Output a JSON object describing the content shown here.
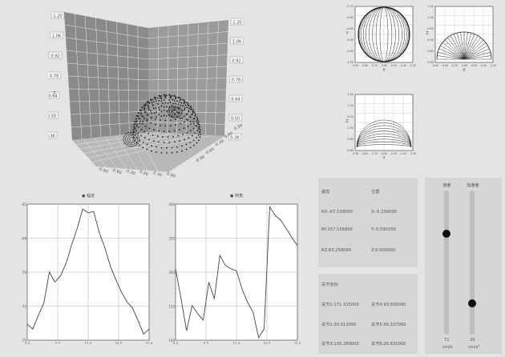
{
  "view3d": {
    "z_ticks_left": [
      "1.20",
      "1.06",
      "0.92",
      "0.78",
      "0.64",
      "0.50",
      "0.36"
    ],
    "z_ticks_right": [
      "1.20",
      "1.06",
      "0.92",
      "0.78",
      "0.64",
      "0.50",
      "0.36"
    ],
    "z_axis_label": "Z",
    "x_ticks": [
      "-0.90",
      "-0.60",
      "-0.30",
      "0.00",
      "0.30",
      "0.60"
    ],
    "y_ticks": [
      "-0.90",
      "-0.60",
      "-0.30",
      "0.00",
      "0.30"
    ]
  },
  "small_charts": {
    "top_left": {
      "y_ticks": [
        "-0.75",
        "-0.80",
        "-0.85",
        "-0.90",
        "-0.95",
        "-1.00"
      ],
      "x_ticks": [
        "-0.90",
        "-0.80",
        "-0.70",
        "-0.60",
        "-0.50",
        "-0.40",
        "-0.30"
      ],
      "ylabel": "Y",
      "xlabel": "X"
    },
    "top_right": {
      "y_ticks": [
        "1.05",
        "1.00",
        "0.95",
        "0.90",
        "0.85",
        "0.80"
      ],
      "x_ticks": [
        "-0.90",
        "-0.80",
        "-0.70",
        "-0.60",
        "-0.50",
        "-0.40",
        "-0.30"
      ],
      "ylabel": "Z",
      "xlabel": "X"
    },
    "bottom": {
      "y_ticks": [
        "1.05",
        "1.00",
        "0.95",
        "0.90",
        "0.85",
        "0.80"
      ],
      "x_ticks": [
        "-0.90",
        "-0.80",
        "-0.70",
        "-0.60",
        "-0.50",
        "-0.40",
        "-0.30"
      ],
      "ylabel": "Z",
      "xlabel": "Y"
    }
  },
  "chart_data": [
    {
      "type": "line",
      "title": "",
      "legend": [
        "● 幅度"
      ],
      "x_ticks": [
        "0.0",
        "5.5",
        "11.0",
        "16.5",
        "22.0"
      ],
      "y_ticks": [
        "-65",
        "-68",
        "-70",
        "-72",
        "-75"
      ],
      "ylim": [
        -75.5,
        -64.5
      ],
      "x": [
        0,
        1,
        2,
        3,
        4,
        5,
        6,
        7,
        8,
        9,
        10,
        11,
        12,
        13,
        14,
        15,
        16,
        17,
        18,
        19,
        20,
        21,
        22
      ],
      "values": [
        -74.2,
        -74.6,
        -73.5,
        -72.5,
        -70.0,
        -70.8,
        -70.3,
        -69.3,
        -67.8,
        -66.5,
        -64.9,
        -65.2,
        -65.1,
        -66.8,
        -68.0,
        -69.5,
        -70.6,
        -71.6,
        -72.4,
        -72.9,
        -73.9,
        -75.0,
        -74.6
      ]
    },
    {
      "type": "line",
      "title": "",
      "legend": [
        "● 侧角"
      ],
      "x_ticks": [
        "0.0",
        "5.5",
        "11.0",
        "16.5",
        "22.0"
      ],
      "y_ticks": [
        "300",
        "250",
        "200",
        "150",
        "100"
      ],
      "ylim": [
        98,
        302
      ],
      "x": [
        0,
        1,
        2,
        3,
        4,
        5,
        6,
        7,
        8,
        9,
        10,
        11,
        12,
        13,
        14,
        15,
        16,
        17,
        18,
        19,
        20,
        21,
        22
      ],
      "values": [
        205,
        160,
        112,
        150,
        138,
        128,
        185,
        160,
        225,
        210,
        205,
        202,
        175,
        155,
        140,
        102,
        115,
        298,
        285,
        278,
        265,
        252,
        240
      ]
    }
  ],
  "status": {
    "title_left": "姿态",
    "title_right": "位置",
    "rows": [
      {
        "left": "RX:-67.100000",
        "right": "X:-0.236000"
      },
      {
        "left": "RY:157.156800",
        "right": "Y:-0.590200"
      },
      {
        "left": "RZ:83.258000",
        "right": "Z:0.600000"
      }
    ]
  },
  "joints": {
    "title": "关节坐标",
    "rows": [
      {
        "left": "关节1:171.315000",
        "right": "关节4:93.500000"
      },
      {
        "left": "关节2:30.013000",
        "right": "关节5:56.327000"
      },
      {
        "left": "关节3:105.289000",
        "right": "关节6:26.631000"
      }
    ]
  },
  "sliders": {
    "speed": {
      "label": "速度",
      "value": "71",
      "unit": "cm/s",
      "level": 0.71
    },
    "accel": {
      "label": "加速度",
      "value": "20",
      "unit": "cm/s²",
      "level": 0.2
    }
  },
  "colors": {
    "panel": "#d6d6d6",
    "bg": "#e4e4e4",
    "line": "#555555",
    "grid": "#ffffff"
  }
}
